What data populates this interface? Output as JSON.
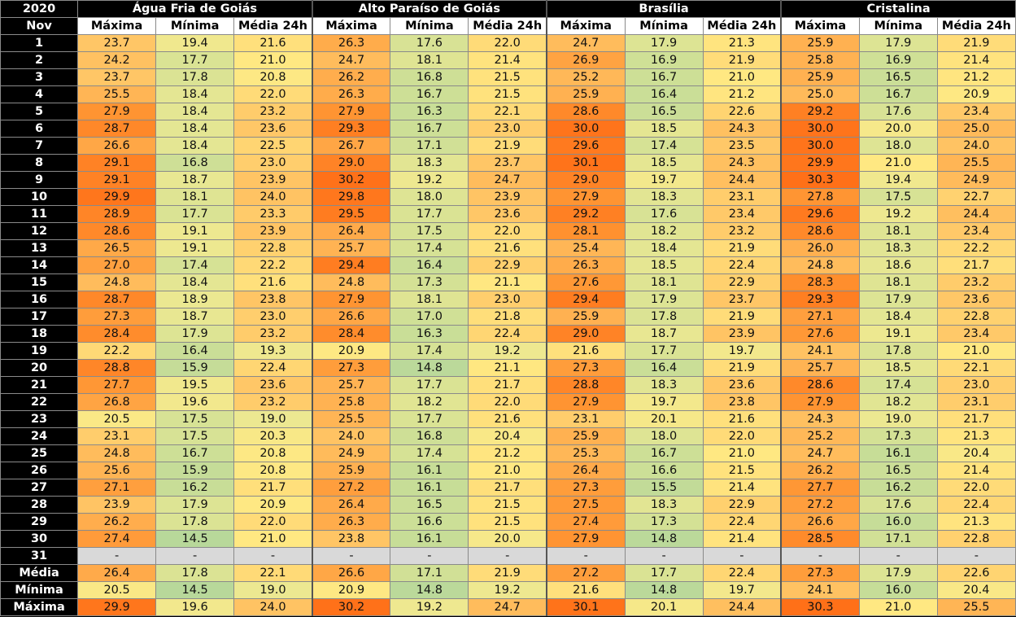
{
  "header": {
    "year": "2020",
    "month": "Nov"
  },
  "sub_headers": [
    "Máxima",
    "Mínima",
    "Média 24h"
  ],
  "stations": [
    "Água Fria de Goiás",
    "Alto Paraíso de Goiás",
    "Brasília",
    "Cristalina"
  ],
  "rows": [
    {
      "day": "1",
      "v": [
        "23.7",
        "19.4",
        "21.6",
        "26.3",
        "17.6",
        "22.0",
        "24.7",
        "17.9",
        "21.3",
        "25.9",
        "17.9",
        "21.9"
      ]
    },
    {
      "day": "2",
      "v": [
        "24.2",
        "17.7",
        "21.0",
        "24.7",
        "18.1",
        "21.4",
        "26.9",
        "16.9",
        "21.9",
        "25.8",
        "16.9",
        "21.4"
      ]
    },
    {
      "day": "3",
      "v": [
        "23.7",
        "17.8",
        "20.8",
        "26.2",
        "16.8",
        "21.5",
        "25.2",
        "16.7",
        "21.0",
        "25.9",
        "16.5",
        "21.2"
      ]
    },
    {
      "day": "4",
      "v": [
        "25.5",
        "18.4",
        "22.0",
        "26.3",
        "16.7",
        "21.5",
        "25.9",
        "16.4",
        "21.2",
        "25.0",
        "16.7",
        "20.9"
      ]
    },
    {
      "day": "5",
      "v": [
        "27.9",
        "18.4",
        "23.2",
        "27.9",
        "16.3",
        "22.1",
        "28.6",
        "16.5",
        "22.6",
        "29.2",
        "17.6",
        "23.4"
      ]
    },
    {
      "day": "6",
      "v": [
        "28.7",
        "18.4",
        "23.6",
        "29.3",
        "16.7",
        "23.0",
        "30.0",
        "18.5",
        "24.3",
        "30.0",
        "20.0",
        "25.0"
      ]
    },
    {
      "day": "7",
      "v": [
        "26.6",
        "18.4",
        "22.5",
        "26.7",
        "17.1",
        "21.9",
        "29.6",
        "17.4",
        "23.5",
        "30.0",
        "18.0",
        "24.0"
      ]
    },
    {
      "day": "8",
      "v": [
        "29.1",
        "16.8",
        "23.0",
        "29.0",
        "18.3",
        "23.7",
        "30.1",
        "18.5",
        "24.3",
        "29.9",
        "21.0",
        "25.5"
      ]
    },
    {
      "day": "9",
      "v": [
        "29.1",
        "18.7",
        "23.9",
        "30.2",
        "19.2",
        "24.7",
        "29.0",
        "19.7",
        "24.4",
        "30.3",
        "19.4",
        "24.9"
      ]
    },
    {
      "day": "10",
      "v": [
        "29.9",
        "18.1",
        "24.0",
        "29.8",
        "18.0",
        "23.9",
        "27.9",
        "18.3",
        "23.1",
        "27.8",
        "17.5",
        "22.7"
      ]
    },
    {
      "day": "11",
      "v": [
        "28.9",
        "17.7",
        "23.3",
        "29.5",
        "17.7",
        "23.6",
        "29.2",
        "17.6",
        "23.4",
        "29.6",
        "19.2",
        "24.4"
      ]
    },
    {
      "day": "12",
      "v": [
        "28.6",
        "19.1",
        "23.9",
        "26.4",
        "17.5",
        "22.0",
        "28.1",
        "18.2",
        "23.2",
        "28.6",
        "18.1",
        "23.4"
      ]
    },
    {
      "day": "13",
      "v": [
        "26.5",
        "19.1",
        "22.8",
        "25.7",
        "17.4",
        "21.6",
        "25.4",
        "18.4",
        "21.9",
        "26.0",
        "18.3",
        "22.2"
      ]
    },
    {
      "day": "14",
      "v": [
        "27.0",
        "17.4",
        "22.2",
        "29.4",
        "16.4",
        "22.9",
        "26.3",
        "18.5",
        "22.4",
        "24.8",
        "18.6",
        "21.7"
      ]
    },
    {
      "day": "15",
      "v": [
        "24.8",
        "18.4",
        "21.6",
        "24.8",
        "17.3",
        "21.1",
        "27.6",
        "18.1",
        "22.9",
        "28.3",
        "18.1",
        "23.2"
      ]
    },
    {
      "day": "16",
      "v": [
        "28.7",
        "18.9",
        "23.8",
        "27.9",
        "18.1",
        "23.0",
        "29.4",
        "17.9",
        "23.7",
        "29.3",
        "17.9",
        "23.6"
      ]
    },
    {
      "day": "17",
      "v": [
        "27.3",
        "18.7",
        "23.0",
        "26.6",
        "17.0",
        "21.8",
        "25.9",
        "17.8",
        "21.9",
        "27.1",
        "18.4",
        "22.8"
      ]
    },
    {
      "day": "18",
      "v": [
        "28.4",
        "17.9",
        "23.2",
        "28.4",
        "16.3",
        "22.4",
        "29.0",
        "18.7",
        "23.9",
        "27.6",
        "19.1",
        "23.4"
      ]
    },
    {
      "day": "19",
      "v": [
        "22.2",
        "16.4",
        "19.3",
        "20.9",
        "17.4",
        "19.2",
        "21.6",
        "17.7",
        "19.7",
        "24.1",
        "17.8",
        "21.0"
      ]
    },
    {
      "day": "20",
      "v": [
        "28.8",
        "15.9",
        "22.4",
        "27.3",
        "14.8",
        "21.1",
        "27.3",
        "16.4",
        "21.9",
        "25.7",
        "18.5",
        "22.1"
      ]
    },
    {
      "day": "21",
      "v": [
        "27.7",
        "19.5",
        "23.6",
        "25.7",
        "17.7",
        "21.7",
        "28.8",
        "18.3",
        "23.6",
        "28.6",
        "17.4",
        "23.0"
      ]
    },
    {
      "day": "22",
      "v": [
        "26.8",
        "19.6",
        "23.2",
        "25.8",
        "18.2",
        "22.0",
        "27.9",
        "19.7",
        "23.8",
        "27.9",
        "18.2",
        "23.1"
      ]
    },
    {
      "day": "23",
      "v": [
        "20.5",
        "17.5",
        "19.0",
        "25.5",
        "17.7",
        "21.6",
        "23.1",
        "20.1",
        "21.6",
        "24.3",
        "19.0",
        "21.7"
      ]
    },
    {
      "day": "24",
      "v": [
        "23.1",
        "17.5",
        "20.3",
        "24.0",
        "16.8",
        "20.4",
        "25.9",
        "18.0",
        "22.0",
        "25.2",
        "17.3",
        "21.3"
      ]
    },
    {
      "day": "25",
      "v": [
        "24.8",
        "16.7",
        "20.8",
        "24.9",
        "17.4",
        "21.2",
        "25.3",
        "16.7",
        "21.0",
        "24.7",
        "16.1",
        "20.4"
      ]
    },
    {
      "day": "26",
      "v": [
        "25.6",
        "15.9",
        "20.8",
        "25.9",
        "16.1",
        "21.0",
        "26.4",
        "16.6",
        "21.5",
        "26.2",
        "16.5",
        "21.4"
      ]
    },
    {
      "day": "27",
      "v": [
        "27.1",
        "16.2",
        "21.7",
        "27.2",
        "16.1",
        "21.7",
        "27.3",
        "15.5",
        "21.4",
        "27.7",
        "16.2",
        "22.0"
      ]
    },
    {
      "day": "28",
      "v": [
        "23.9",
        "17.9",
        "20.9",
        "26.4",
        "16.5",
        "21.5",
        "27.5",
        "18.3",
        "22.9",
        "27.2",
        "17.6",
        "22.4"
      ]
    },
    {
      "day": "29",
      "v": [
        "26.2",
        "17.8",
        "22.0",
        "26.3",
        "16.6",
        "21.5",
        "27.4",
        "17.3",
        "22.4",
        "26.6",
        "16.0",
        "21.3"
      ]
    },
    {
      "day": "30",
      "v": [
        "27.4",
        "14.5",
        "21.0",
        "23.8",
        "16.1",
        "20.0",
        "27.9",
        "14.8",
        "21.4",
        "28.5",
        "17.1",
        "22.8"
      ]
    },
    {
      "day": "31",
      "v": [
        "-",
        "-",
        "-",
        "-",
        "-",
        "-",
        "-",
        "-",
        "-",
        "-",
        "-",
        "-"
      ]
    }
  ],
  "summary": [
    {
      "label": "Média",
      "v": [
        "26.4",
        "17.8",
        "22.1",
        "26.6",
        "17.1",
        "21.9",
        "27.2",
        "17.7",
        "22.4",
        "27.3",
        "17.9",
        "22.6"
      ]
    },
    {
      "label": "Mínima",
      "v": [
        "20.5",
        "14.5",
        "19.0",
        "20.9",
        "14.8",
        "19.2",
        "21.6",
        "14.8",
        "19.7",
        "24.1",
        "16.0",
        "20.4"
      ]
    },
    {
      "label": "Máxima",
      "v": [
        "29.9",
        "19.6",
        "24.0",
        "30.2",
        "19.2",
        "24.7",
        "30.1",
        "20.1",
        "24.4",
        "30.3",
        "21.0",
        "25.5"
      ]
    }
  ]
}
